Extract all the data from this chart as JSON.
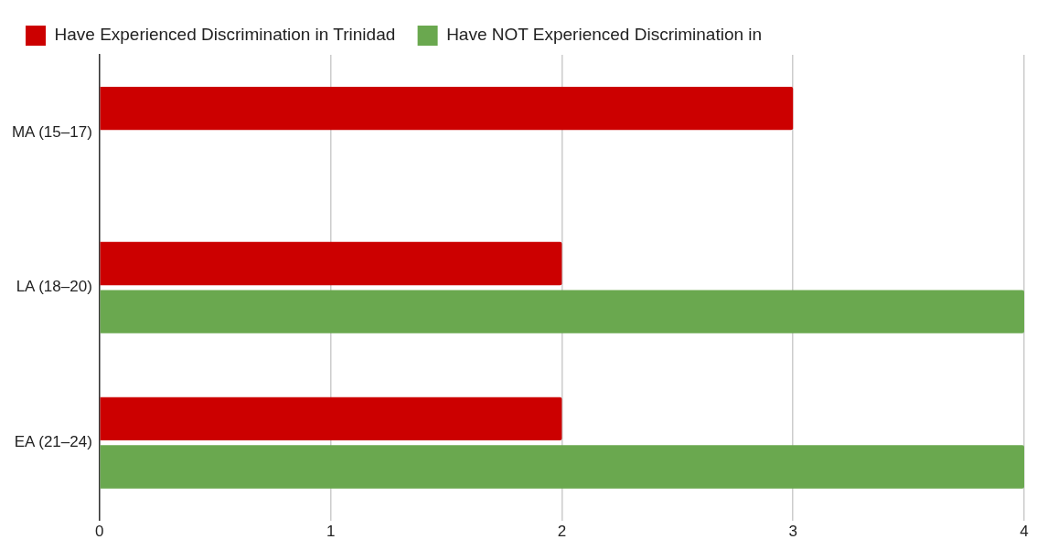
{
  "chart_data": {
    "type": "bar",
    "orientation": "horizontal",
    "categories": [
      "MA (15–17)",
      "LA (18–20)",
      "EA (21–24)"
    ],
    "series": [
      {
        "name": "Have Experienced Discrimination in Trinidad",
        "color": "#cc0000",
        "values": [
          3,
          2,
          2
        ]
      },
      {
        "name": "Have NOT Experienced Discrimination in",
        "color": "#6aa84f",
        "values": [
          null,
          4,
          4
        ]
      }
    ],
    "xlim": [
      0,
      4
    ],
    "xticks": [
      0,
      1,
      2,
      3,
      4
    ],
    "grid": "x",
    "legend": "top left"
  }
}
